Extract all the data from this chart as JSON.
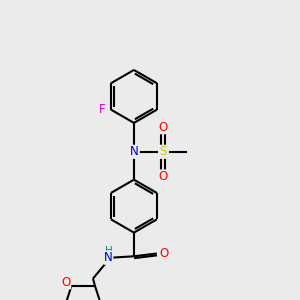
{
  "bg_color": "#ebebeb",
  "bond_color": "#000000",
  "bond_width": 1.5,
  "atom_colors": {
    "N": "#0000cc",
    "O": "#ff0000",
    "F": "#cc00cc",
    "S": "#cccc00",
    "H_teal": "#008888",
    "C": "#000000"
  },
  "font_size_atom": 8.5,
  "font_size_H": 7.5,
  "figsize": [
    3.0,
    3.0
  ],
  "dpi": 100
}
